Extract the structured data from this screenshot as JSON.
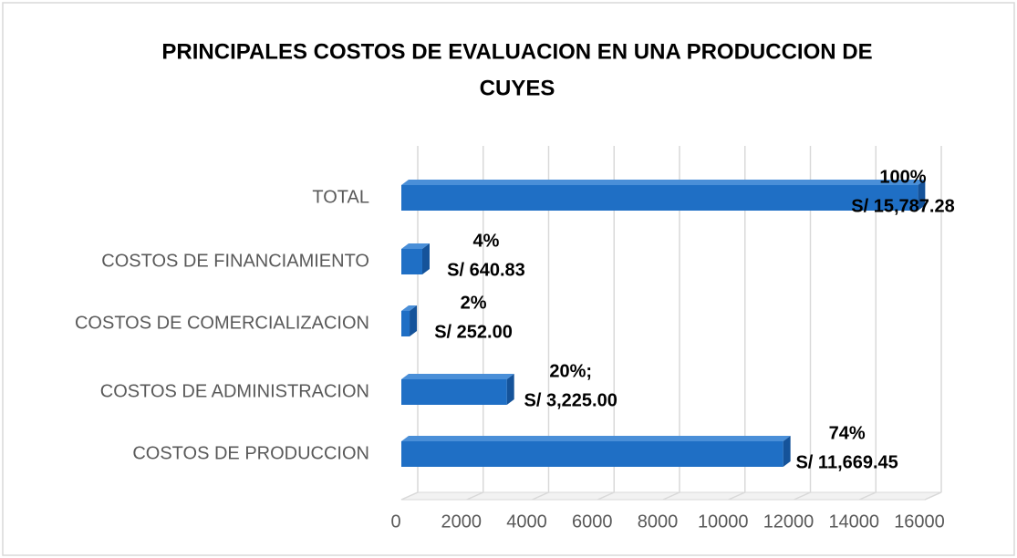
{
  "chart_data": {
    "type": "bar3d_horizontal",
    "title_lines": [
      "PRINCIPALES COSTOS DE EVALUACION EN UNA PRODUCCION DE",
      "CUYES"
    ],
    "categories": [
      "TOTAL",
      "COSTOS DE FINANCIAMIENTO",
      "COSTOS DE COMERCIALIZACION",
      "COSTOS DE ADMINISTRACION",
      "COSTOS DE PRODUCCION"
    ],
    "values": [
      15787.28,
      640.83,
      252.0,
      3225.0,
      11669.45
    ],
    "value_labels": [
      "S/ 15,787.28",
      "S/ 640.83",
      "S/ 252.00",
      "S/ 3,225.00",
      "S/ 11,669.45"
    ],
    "percent_labels": [
      "100%",
      "4%",
      "2%",
      "20%;",
      "74%"
    ],
    "color": "#1f6fc5",
    "xlim": [
      0,
      16000
    ],
    "xticks": [
      0,
      2000,
      4000,
      6000,
      8000,
      10000,
      12000,
      14000,
      16000
    ],
    "grid": true
  }
}
